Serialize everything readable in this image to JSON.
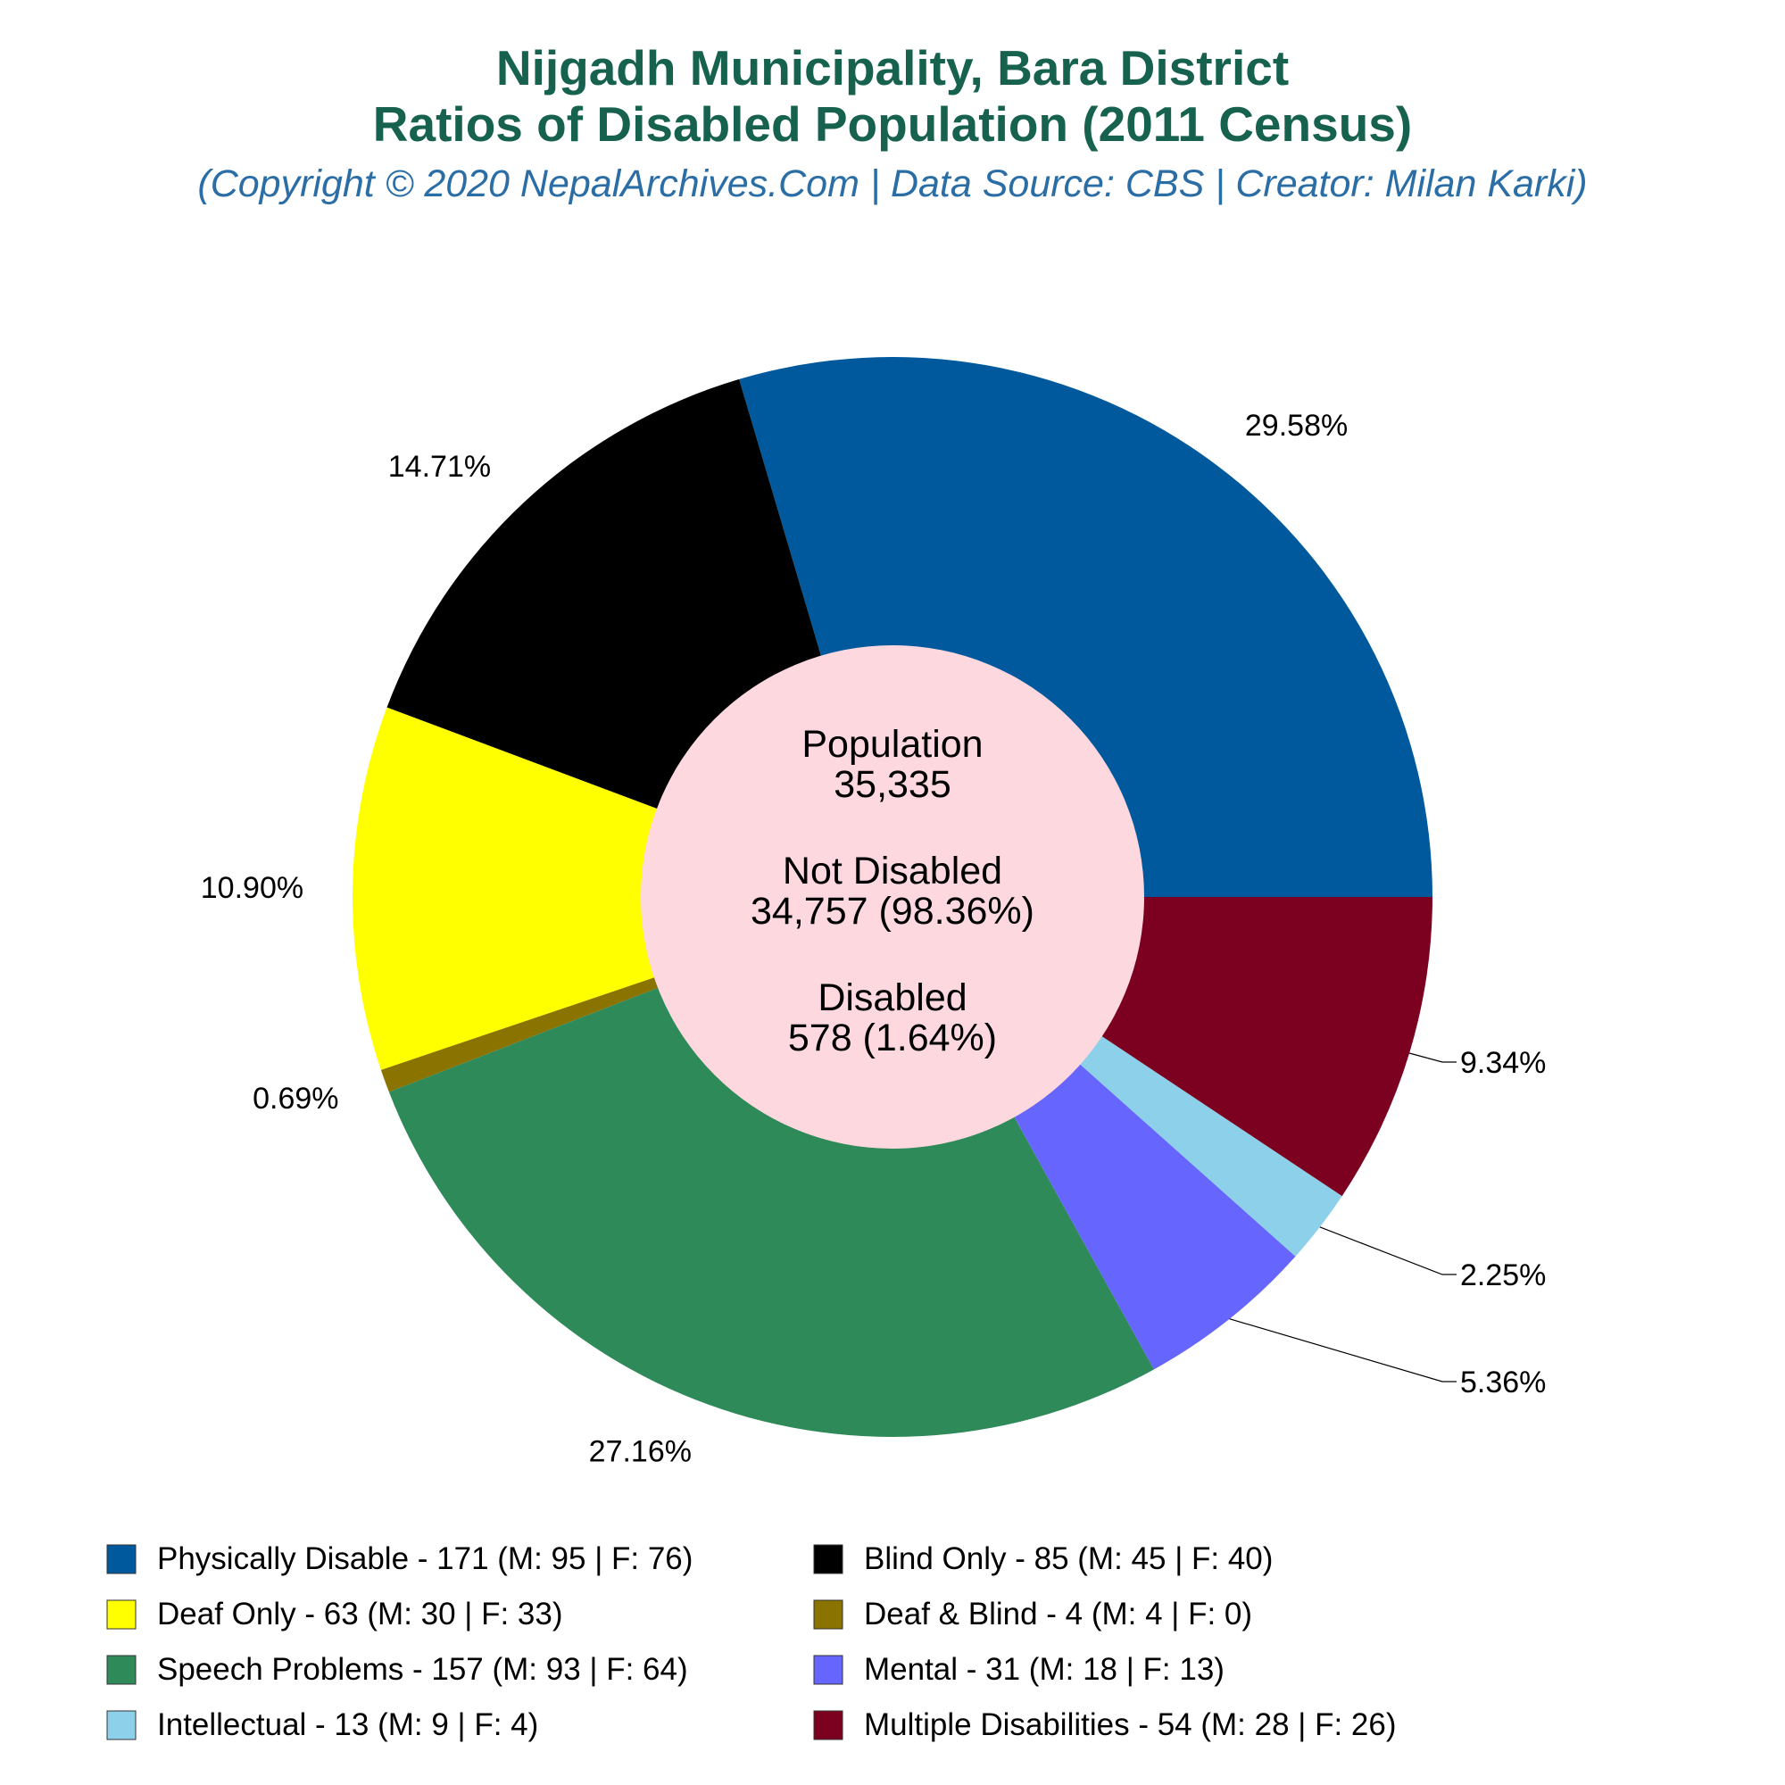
{
  "header": {
    "title_line1": "Nijgadh Municipality, Bara District",
    "title_line2": "Ratios of Disabled Population (2011 Census)",
    "subtitle": "(Copyright © 2020 NepalArchives.Com | Data Source: CBS | Creator: Milan Karki)"
  },
  "center": {
    "population_label": "Population",
    "population_value": "35,335",
    "not_disabled_label": "Not Disabled",
    "not_disabled_value": "34,757 (98.36%)",
    "disabled_label": "Disabled",
    "disabled_value": "578 (1.64%)",
    "background": "#fdd8df"
  },
  "chart_data": {
    "type": "pie",
    "donut": true,
    "start_angle_deg": 0,
    "direction": "counterclockwise",
    "slices": [
      {
        "name": "Physically Disable",
        "value": 171,
        "male": 95,
        "female": 76,
        "percent_label": "29.58%",
        "color": "#00599d",
        "legend": "Physically Disable - 171 (M: 95 | F: 76)"
      },
      {
        "name": "Blind Only",
        "value": 85,
        "male": 45,
        "female": 40,
        "percent_label": "14.71%",
        "color": "#000000",
        "legend": "Blind Only - 85 (M: 45 | F: 40)"
      },
      {
        "name": "Deaf Only",
        "value": 63,
        "male": 30,
        "female": 33,
        "percent_label": "10.90%",
        "color": "#ffff00",
        "legend": "Deaf Only - 63 (M: 30 | F: 33)"
      },
      {
        "name": "Deaf & Blind",
        "value": 4,
        "male": 4,
        "female": 0,
        "percent_label": "0.69%",
        "color": "#8b7300",
        "legend": "Deaf & Blind - 4 (M: 4 | F: 0)"
      },
      {
        "name": "Speech Problems",
        "value": 157,
        "male": 93,
        "female": 64,
        "percent_label": "27.16%",
        "color": "#2e8a58",
        "legend": "Speech Problems - 157 (M: 93 | F: 64)"
      },
      {
        "name": "Mental",
        "value": 31,
        "male": 18,
        "female": 13,
        "percent_label": "5.36%",
        "color": "#6666ff",
        "legend": "Mental - 31 (M: 18 | F: 13)"
      },
      {
        "name": "Intellectual",
        "value": 13,
        "male": 9,
        "female": 4,
        "percent_label": "2.25%",
        "color": "#8dd0ea",
        "legend": "Intellectual - 13 (M: 9 | F: 4)"
      },
      {
        "name": "Multiple Disabilities",
        "value": 54,
        "male": 28,
        "female": 26,
        "percent_label": "9.34%",
        "color": "#7c0020",
        "legend": "Multiple Disabilities - 54 (M: 28 | F: 26)"
      }
    ],
    "legend_placement": "bottom",
    "legend_columns": 2
  }
}
